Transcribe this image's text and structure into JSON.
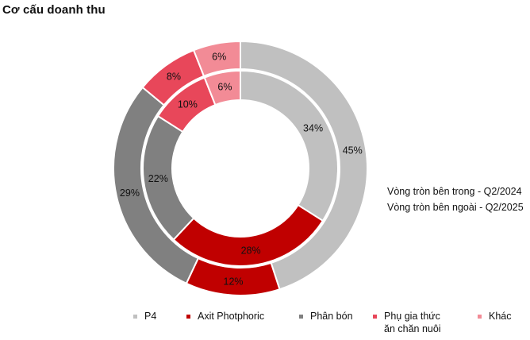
{
  "header": {
    "title": "Cơ cấu doanh thu"
  },
  "notes": {
    "inner_ring": "Vòng tròn bên trong - Q2/2024",
    "outer_ring": "Vòng tròn bên ngoài - Q2/2025"
  },
  "chart_data": {
    "type": "donut",
    "title": "Cơ cấu doanh thu",
    "categories": [
      "P4",
      "Axit Photphoric",
      "Phân bón",
      "Phụ gia thức ăn chăn nuôi",
      "Khác"
    ],
    "colors": [
      "#c0c0c0",
      "#c00000",
      "#808080",
      "#e8475a",
      "#f28b96"
    ],
    "series": [
      {
        "name": "Vòng tròn bên trong - Q2/2024",
        "ring": "inner",
        "values": [
          34,
          28,
          22,
          10,
          6
        ],
        "labels": [
          "34%",
          "28%",
          "22%",
          "10%",
          "6%"
        ]
      },
      {
        "name": "Vòng tròn bên ngoài - Q2/2025",
        "ring": "outer",
        "values": [
          45,
          12,
          29,
          8,
          6
        ],
        "labels": [
          "45%",
          "12%",
          "29%",
          "8%",
          "6%"
        ]
      }
    ],
    "legend": {
      "position": "bottom",
      "items": [
        {
          "label": "P4",
          "color": "#c0c0c0"
        },
        {
          "label": "Axit Photphoric",
          "color": "#c00000"
        },
        {
          "label": "Phân bón",
          "color": "#808080"
        },
        {
          "label": "Phụ gia thức\năn chăn nuôi",
          "color": "#e8475a"
        },
        {
          "label": "Khác",
          "color": "#f28b96"
        }
      ]
    }
  }
}
